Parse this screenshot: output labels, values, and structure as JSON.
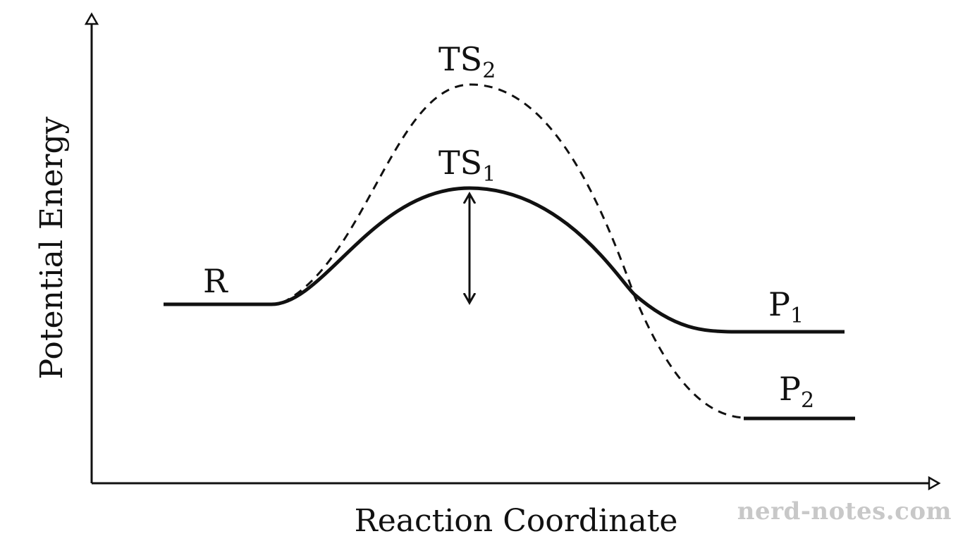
{
  "diagram": {
    "axes": {
      "x_label": "Reaction Coordinate",
      "y_label": "Potential Energy"
    },
    "labels": {
      "reactant": "R",
      "ts1_main": "TS",
      "ts1_sub": "1",
      "ts2_main": "TS",
      "ts2_sub": "2",
      "p1_main": "P",
      "p1_sub": "1",
      "p2_main": "P",
      "p2_sub": "2"
    },
    "paths": {
      "solid_style": "solid",
      "dashed_style": "dashed"
    },
    "colors": {
      "ink": "#111111",
      "watermark": "#c8c8c8"
    }
  },
  "watermark": {
    "text": "nerd-notes.com"
  }
}
